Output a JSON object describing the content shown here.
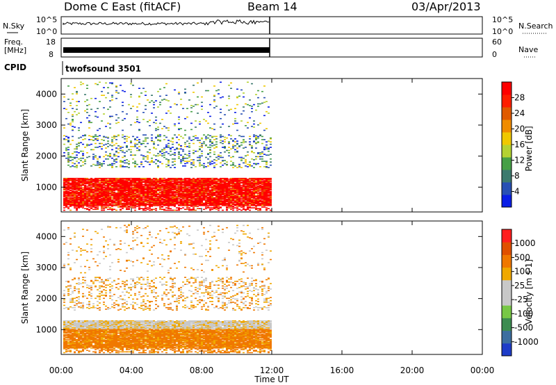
{
  "header": {
    "station": "Dome C East (fitACF)",
    "beam": "Beam 14",
    "date": "03/Apr/2013"
  },
  "noise_panel": {
    "left_label": "N.Sky",
    "right_label": "N.Search",
    "left_ticks": [
      "10^5",
      "10^0"
    ],
    "right_ticks": [
      "10^5",
      "10^0"
    ]
  },
  "freq_panel": {
    "left_label_1": "Freq.",
    "left_label_2": "[MHz]",
    "right_label": "Nave",
    "left_ticks": [
      "18",
      "8"
    ],
    "right_ticks": [
      "60",
      "0"
    ]
  },
  "cpid": {
    "label": "CPID",
    "value": "twofsound 3501"
  },
  "colors": {
    "power_scale": [
      "#0a1ee6",
      "#2850b4",
      "#3c7a6e",
      "#46a046",
      "#b4d232",
      "#f0c800",
      "#f08c00",
      "#e05a00",
      "#ff1e00",
      "#ff0000"
    ],
    "velocity_scale": [
      "#1e3cc8",
      "#3c6ea0",
      "#3c8c50",
      "#78c846",
      "#c8c8c8",
      "#c8c8c8",
      "#f0a800",
      "#f07800",
      "#e05000",
      "#ff1e1e"
    ]
  },
  "chart_data": [
    {
      "type": "heatmap",
      "name": "power",
      "ylabel": "Slant Range [km]",
      "colorbar_label": "Power [dB]",
      "colorbar_ticks": [
        "28",
        "24",
        "20",
        "16",
        "12",
        "8",
        "4"
      ],
      "yticks": [
        "4000",
        "3000",
        "2000",
        "1000"
      ],
      "ylim": [
        200,
        4500
      ],
      "xlim": [
        0,
        24
      ],
      "data_extent_hours": [
        0,
        12
      ],
      "bands": [
        {
          "range_km": [
            400,
            1300
          ],
          "level": "strong"
        },
        {
          "range_km": [
            1600,
            2700
          ],
          "level": "sparse"
        },
        {
          "range_km": [
            2800,
            4400
          ],
          "level": "very sparse"
        }
      ]
    },
    {
      "type": "heatmap",
      "name": "velocity",
      "ylabel": "Slant Range [km]",
      "colorbar_label": "Velocity [m s-1]",
      "colorbar_ticks": [
        "1000",
        "500",
        "100",
        "25",
        "-25",
        "-100",
        "-500",
        "-1000"
      ],
      "yticks": [
        "4000",
        "3000",
        "2000",
        "1000"
      ],
      "ylim": [
        200,
        4500
      ],
      "xlim": [
        0,
        24
      ],
      "data_extent_hours": [
        0,
        12
      ]
    }
  ],
  "xaxis": {
    "ticks": [
      "00:00",
      "04:00",
      "08:00",
      "12:00",
      "16:00",
      "20:00",
      "00:00"
    ],
    "label": "Time UT"
  }
}
